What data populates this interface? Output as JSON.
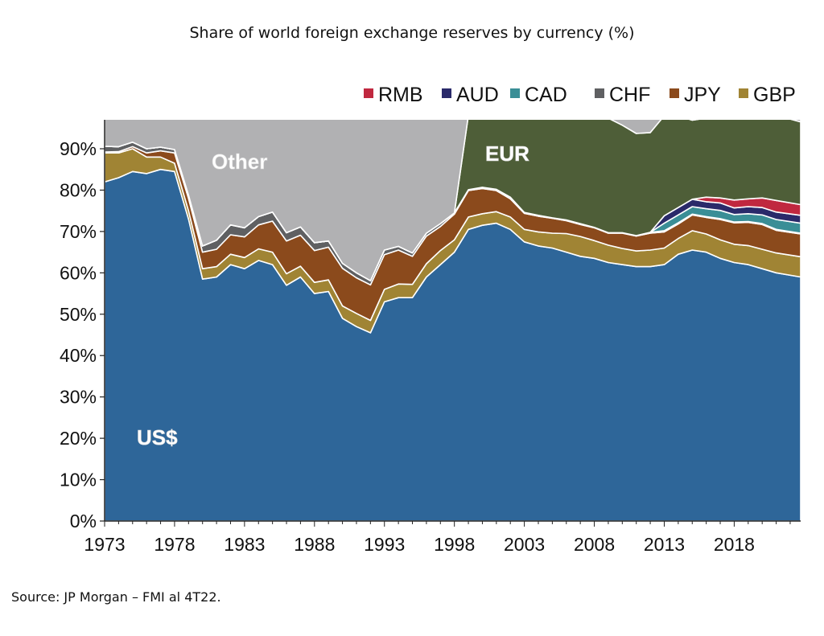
{
  "chart_data": {
    "type": "area",
    "stacked": true,
    "title": "Share of world foreign exchange reserves by currency (%)",
    "xlabel": "",
    "ylabel": "",
    "xlim": [
      1973,
      2022.75
    ],
    "ylim": [
      0,
      97
    ],
    "xticks": [
      "1973",
      "1978",
      "1983",
      "1988",
      "1993",
      "1998",
      "2003",
      "2008",
      "2013",
      "2018"
    ],
    "yticks": [
      "0%",
      "10%",
      "20%",
      "30%",
      "40%",
      "50%",
      "60%",
      "70%",
      "80%",
      "90%"
    ],
    "legend": {
      "placement": "top-right",
      "entries": [
        "RMB",
        "AUD",
        "CAD",
        "CHF",
        "JPY",
        "GBP"
      ]
    },
    "annotations": {
      "other": "Other",
      "eur": "EUR",
      "usd": "US$"
    },
    "x": [
      1973,
      1974,
      1975,
      1976,
      1977,
      1978,
      1979,
      1980,
      1981,
      1982,
      1983,
      1984,
      1985,
      1986,
      1987,
      1988,
      1989,
      1990,
      1991,
      1992,
      1993,
      1994,
      1995,
      1996,
      1997,
      1998,
      1999,
      2000,
      2001,
      2002,
      2003,
      2004,
      2005,
      2006,
      2007,
      2008,
      2009,
      2010,
      2011,
      2012,
      2013,
      2014,
      2015,
      2016,
      2017,
      2018,
      2019,
      2020,
      2021,
      2022.75
    ],
    "series": [
      {
        "name": "US$",
        "color": "#2e6699",
        "values": [
          82,
          83,
          84.5,
          84,
          85,
          84.5,
          73,
          58.5,
          59,
          62,
          61,
          63,
          62,
          57,
          59,
          55,
          55.5,
          49,
          47,
          45.5,
          53,
          54,
          54,
          59,
          62,
          65,
          70.5,
          71.5,
          72,
          70.5,
          67.5,
          66.5,
          66,
          65,
          64,
          63.5,
          62.5,
          62,
          61.5,
          61.5,
          62,
          64.5,
          65.5,
          65,
          63.5,
          62.5,
          62,
          61,
          60,
          59
        ]
      },
      {
        "name": "GBP",
        "color": "#a08434",
        "values": [
          7,
          6,
          5.5,
          4,
          3,
          2,
          2,
          2.5,
          2.5,
          2.5,
          2.7,
          2.8,
          3,
          2.8,
          2.6,
          2.7,
          2.8,
          3,
          3.2,
          3,
          3,
          3.3,
          3.2,
          3.2,
          3.4,
          3,
          3,
          2.8,
          2.8,
          3,
          3,
          3.4,
          3.6,
          4.5,
          4.8,
          4.3,
          4.2,
          3.9,
          3.8,
          4,
          4,
          3.8,
          4.7,
          4.4,
          4.5,
          4.4,
          4.6,
          4.7,
          4.8,
          4.9
        ]
      },
      {
        "name": "JPY",
        "color": "#8b4a1c",
        "values": [
          0.2,
          0.3,
          0.5,
          1,
          1.5,
          2.5,
          3,
          4,
          4.2,
          4.7,
          5,
          5.8,
          7.5,
          7.9,
          7.5,
          7.7,
          7.9,
          9.1,
          8.6,
          8.6,
          8.4,
          8.2,
          6.8,
          6.7,
          5.8,
          6.2,
          6.4,
          6.1,
          5.1,
          4.4,
          3.9,
          3.8,
          3.6,
          3.1,
          2.9,
          3.1,
          2.9,
          3.7,
          3.6,
          4.1,
          3.9,
          3.5,
          3.8,
          4,
          4.9,
          5.2,
          5.6,
          6,
          5.5,
          5.5
        ]
      },
      {
        "name": "CHF",
        "color": "#5f6062",
        "values": [
          1.4,
          1.2,
          1.1,
          1,
          0.9,
          0.8,
          0.8,
          1.5,
          2.2,
          2.4,
          2.2,
          2,
          2.2,
          2,
          2,
          1.9,
          1.5,
          1.2,
          1.2,
          1,
          1.1,
          0.9,
          0.8,
          0.7,
          0.7,
          0.3,
          0.2,
          0.3,
          0.3,
          0.4,
          0.2,
          0.2,
          0.1,
          0.2,
          0.2,
          0.1,
          0.1,
          0.1,
          0.1,
          0.2,
          0.3,
          0.3,
          0.2,
          0.2,
          0.2,
          0.2,
          0.2,
          0.2,
          0.2,
          0.2
        ]
      },
      {
        "name": "CAD",
        "color": "#3a8e96",
        "values": [
          0,
          0,
          0,
          0,
          0,
          0,
          0,
          0,
          0,
          0,
          0,
          0,
          0,
          0,
          0,
          0,
          0,
          0,
          0,
          0,
          0,
          0,
          0,
          0,
          0,
          0,
          0,
          0,
          0,
          0,
          0,
          0,
          0,
          0,
          0,
          0,
          0,
          0,
          0,
          0,
          1.8,
          1.9,
          1.8,
          1.9,
          2,
          1.8,
          1.9,
          2.1,
          2.4,
          2.4
        ]
      },
      {
        "name": "AUD",
        "color": "#2a2a6a",
        "values": [
          0,
          0,
          0,
          0,
          0,
          0,
          0,
          0,
          0,
          0,
          0,
          0,
          0,
          0,
          0,
          0,
          0,
          0,
          0,
          0,
          0,
          0,
          0,
          0,
          0,
          0,
          0,
          0,
          0,
          0,
          0,
          0,
          0,
          0,
          0,
          0,
          0,
          0,
          0,
          0,
          1.8,
          1.8,
          1.8,
          1.7,
          1.8,
          1.6,
          1.7,
          1.8,
          1.8,
          1.9
        ]
      },
      {
        "name": "RMB",
        "color": "#c0283f",
        "values": [
          0,
          0,
          0,
          0,
          0,
          0,
          0,
          0,
          0,
          0,
          0,
          0,
          0,
          0,
          0,
          0,
          0,
          0,
          0,
          0,
          0,
          0,
          0,
          0,
          0,
          0,
          0,
          0,
          0,
          0,
          0,
          0,
          0,
          0,
          0,
          0,
          0,
          0,
          0,
          0,
          0,
          0,
          0,
          1.1,
          1.2,
          1.9,
          1.9,
          2.3,
          2.8,
          2.6
        ]
      },
      {
        "name": "EUR",
        "color": "#4e5e38",
        "values": [
          0,
          0,
          0,
          0,
          0,
          0,
          0,
          0,
          0,
          0,
          0,
          0,
          0,
          0,
          0,
          0,
          0,
          0,
          0,
          0,
          0,
          0,
          0,
          0,
          0,
          0,
          18,
          18.3,
          19.2,
          23.8,
          25.2,
          24.8,
          24,
          24.7,
          26.1,
          26.2,
          27.7,
          26,
          24.7,
          24.1,
          24.2,
          22.2,
          19.1,
          19.1,
          20.2,
          20.7,
          20.6,
          21.3,
          20.6,
          20
        ]
      },
      {
        "name": "Other",
        "color": "#b1b1b3",
        "values": "remainder"
      }
    ]
  },
  "source": "Source:  JP Morgan – FMI al 4T22."
}
